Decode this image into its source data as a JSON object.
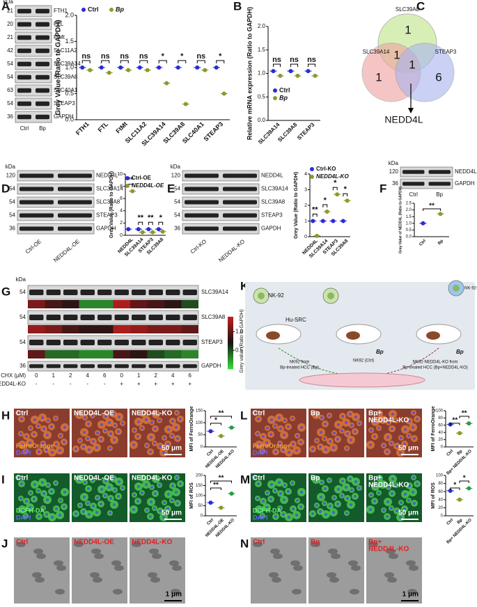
{
  "panels": {
    "A": {
      "letter": "A",
      "blot": {
        "unit": "kDa",
        "markers": [
          21,
          20,
          21,
          42,
          54,
          54,
          63,
          54,
          36
        ],
        "proteins": [
          "FTH1",
          "FTL",
          "FtMt",
          "SLC11A2",
          "SLC39A14",
          "SLC39A8",
          "SLC40A1",
          "STEAP3",
          "GAPDH"
        ],
        "lanes": [
          "Ctrl",
          "Bp"
        ]
      },
      "chart": {
        "type": "scatter",
        "ylabel": "Grey Value (Ratio to GAPDH)",
        "ylim": [
          0,
          2
        ],
        "yticks": [
          {
            "value": 0,
            "label": "0.0"
          },
          0.5,
          {
            "value": 1,
            "label": "1.0"
          },
          1.5,
          {
            "value": 2,
            "label": "2.0"
          }
        ],
        "categories": [
          "FTH1",
          "FTL",
          "FtMt",
          "SLC11A2",
          "SLC39A14",
          "SLC39A8",
          "SLC40A1",
          "STEAP3"
        ],
        "series": [
          {
            "name": "Ctrl",
            "color": "#2b2bd9",
            "values": [
              1.0,
              1.0,
              1.0,
              1.0,
              1.0,
              1.0,
              1.0,
              1.0
            ]
          },
          {
            "name": "Bp",
            "color": "#8c9a2c",
            "values": [
              0.95,
              0.9,
              0.95,
              0.95,
              0.7,
              0.3,
              0.95,
              0.5
            ]
          }
        ],
        "significance": [
          "ns",
          "ns",
          "ns",
          "ns",
          "*",
          "*",
          "ns",
          "*"
        ]
      }
    },
    "B": {
      "letter": "B",
      "chart": {
        "type": "scatter",
        "ylabel": "Relative mRNA expression (Ratio to GAPDH)",
        "ylim": [
          0,
          2
        ],
        "yticks": [
          {
            "value": 0,
            "label": "0.0"
          },
          0.5,
          {
            "value": 1,
            "label": "1.0"
          },
          1.5,
          {
            "value": 2,
            "label": "2.0"
          }
        ],
        "categories": [
          "SLC39A14",
          "SLC39A8",
          "STEAP3"
        ],
        "series": [
          {
            "name": "Ctrl",
            "color": "#2b2bd9",
            "values": [
              1.05,
              1.05,
              1.05
            ]
          },
          {
            "name": "Bp",
            "color": "#8c9a2c",
            "values": [
              0.95,
              0.95,
              0.95
            ]
          }
        ],
        "significance": [
          "ns",
          "ns",
          "ns"
        ]
      }
    },
    "C": {
      "letter": "C",
      "sets": [
        "SLC39A8",
        "SLC39A14",
        "STEAP3"
      ],
      "counts": [
        1,
        1,
        1,
        1,
        6
      ],
      "result": "NEDD4L"
    },
    "D": {
      "letter": "D",
      "blot": {
        "unit": "kDa",
        "markers": [
          120,
          54,
          54,
          54,
          36
        ],
        "proteins": [
          "NEDD4L",
          "SLC39A14",
          "SLC39A8",
          "STEAP3",
          "GAPDH"
        ],
        "lanes": [
          "Ctrl-OE",
          "NEDD4L-OE"
        ]
      },
      "chart": {
        "type": "scatter",
        "ylabel": "Grey Value (Ratio to GAPDH)",
        "ylim": [
          0,
          10
        ],
        "yticks": [
          0,
          2,
          4,
          6,
          8,
          10
        ],
        "categories": [
          "NEDD4L",
          "SLC39A14",
          "STEAP3",
          "SLC39A8"
        ],
        "series": [
          {
            "name": "Ctrl-OE",
            "color": "#2b2bd9",
            "values": [
              1,
              1,
              1,
              1
            ]
          },
          {
            "name": "NEDD4L-OE",
            "color": "#8c9a2c",
            "values": [
              7.2,
              0.5,
              0.5,
              0.6
            ]
          }
        ],
        "significance": [
          "**",
          "**",
          "**",
          "*"
        ]
      }
    },
    "E": {
      "letter": "E",
      "blot": {
        "unit": "kDa",
        "markers": [
          120,
          54,
          54,
          54,
          36
        ],
        "proteins": [
          "NEDD4L",
          "SLC39A14",
          "SLC39A8",
          "STEAP3",
          "GAPDH"
        ],
        "lanes": [
          "Ctrl-KO",
          "NEDD4L-KO"
        ]
      },
      "chart": {
        "type": "scatter",
        "ylabel": "Grey Value (Ratio to GAPDH)",
        "ylim": [
          0,
          4
        ],
        "yticks": [
          0,
          1,
          2,
          3,
          4
        ],
        "categories": [
          "NEDD4L",
          "SLC39A14",
          "STEAP3",
          "SLC39A8"
        ],
        "series": [
          {
            "name": "Ctrl-KO",
            "color": "#2b2bd9",
            "values": [
              1,
              1,
              1,
              1
            ]
          },
          {
            "name": "NEDD4L-KO",
            "color": "#8c9a2c",
            "values": [
              0.05,
              1.6,
              2.7,
              2.3
            ]
          }
        ],
        "significance": [
          "**",
          "*",
          "*",
          "*"
        ]
      }
    },
    "F": {
      "letter": "F",
      "blot": {
        "unit": "kDa",
        "markers": [
          120,
          36
        ],
        "proteins": [
          "NEDD4L",
          "GAPDH"
        ],
        "lanes": [
          "Ctrl",
          "Bp"
        ]
      },
      "chart": {
        "type": "scatter",
        "ylabel": "Gray Value of NEDD4L (Ratio to GAPDH)",
        "ylim": [
          0,
          2.5
        ],
        "yticks": [
          {
            "value": 0,
            "label": "0.0"
          },
          0.5,
          {
            "value": 1,
            "label": "1.0"
          },
          1.5,
          {
            "value": 2,
            "label": "2.0"
          },
          2.5
        ],
        "categories": [
          "Ctrl",
          "Bp"
        ],
        "values": [
          1.0,
          1.7
        ],
        "colors": [
          "#2b2bd9",
          "#8c9a2c"
        ],
        "comparisons": [
          {
            "groups": [
              "Ctrl",
              "Bp"
            ],
            "label": "**"
          }
        ]
      }
    },
    "G": {
      "letter": "G",
      "blot": {
        "unit": "kDa",
        "markers": [
          54,
          54,
          54,
          36
        ],
        "proteins": [
          "SLC39A14",
          "SLC39A8",
          "STEAP3",
          "GAPDH"
        ],
        "conditions": [
          {
            "name": "CHX (μM)",
            "values": [
              0,
              1,
              2,
              4,
              6,
              0,
              1,
              2,
              4,
              6
            ]
          },
          {
            "name": "NEDD4L-KO",
            "values": [
              "-",
              "-",
              "-",
              "-",
              "-",
              "+",
              "+",
              "+",
              "+",
              "+"
            ]
          }
        ]
      },
      "heatmap": {
        "rows": [
          [
            1.1,
            0.9,
            0.8,
            0.3,
            0.3,
            1.3,
            1.0,
            0.9,
            0.8,
            0.5
          ],
          [
            1.2,
            1.1,
            0.9,
            0.8,
            0.8,
            1.3,
            1.2,
            1.1,
            1.1,
            1.0
          ],
          [
            1.0,
            0.4,
            0.4,
            0.3,
            0.3,
            0.9,
            0.8,
            0.5,
            0.4,
            0.3
          ]
        ],
        "colorbar": {
          "label": "Grey value (Ratio to GAPDH)",
          "lim": [
            0,
            1.4
          ],
          "ticks": [
            {
              "value": 1,
              "label": "1.0"
            },
            0.5
          ]
        }
      }
    },
    "K": {
      "letter": "K",
      "labels": {
        "nk92": "NK-92",
        "nk92ko": "NK-92-NEDD4L-KO",
        "model": "Hu-SRC",
        "drug1": "Bp",
        "drug2": "Bp",
        "groupBp": [
          "NK92 from",
          "Bp-treated HCC (Bp)"
        ],
        "groupCtrl": "NK92 (Ctrl)",
        "groupKo": [
          "NK92-NEDD4L-KO from",
          "Bp-treated HCC (Bp+NEDD4L-KO)"
        ]
      }
    },
    "H": {
      "letter": "H",
      "images": {
        "columns": [
          [
            "Ctrl"
          ],
          [
            "NEDD4L-OE"
          ],
          [
            "NEDD4L-KO"
          ]
        ],
        "stains": [
          "FerroOrange",
          "DAPI"
        ],
        "scale": "50 μm"
      },
      "chart": {
        "type": "scatter",
        "ylabel": "MFI of FerroOrange",
        "ylim": [
          0,
          150
        ],
        "yticks": [
          0,
          50,
          100,
          150
        ],
        "categories": [
          "Ctrl",
          "NEDD4L-OE",
          "NEDD4L-KO"
        ],
        "values": [
          65,
          45,
          80
        ],
        "colors": [
          "#2b2bd9",
          "#8c9a2c",
          "#2f9a45"
        ],
        "comparisons": [
          {
            "groups": [
              "Ctrl",
              "NEDD4L-OE"
            ],
            "label": "*"
          },
          {
            "groups": [
              "Ctrl",
              "NEDD4L-KO"
            ],
            "label": "**"
          }
        ]
      }
    },
    "I": {
      "letter": "I",
      "images": {
        "columns": [
          [
            "Ctrl"
          ],
          [
            "NEDD4L-OE"
          ],
          [
            "NEDD4L-KO"
          ]
        ],
        "stains": [
          "DCFH-DA",
          "DAPI"
        ],
        "scale": "50 μm"
      },
      "chart": {
        "type": "scatter",
        "ylabel": "MFI of ROS",
        "ylim": [
          0,
          200
        ],
        "yticks": [
          0,
          50,
          100,
          150,
          200
        ],
        "categories": [
          "Ctrl",
          "NEDD4L-OE",
          "NEDD4L-KO"
        ],
        "values": [
          65,
          40,
          110
        ],
        "colors": [
          "#2b2bd9",
          "#8c9a2c",
          "#2f9a45"
        ],
        "comparisons": [
          {
            "groups": [
              "Ctrl",
              "NEDD4L-OE"
            ],
            "label": "**"
          },
          {
            "groups": [
              "Ctrl",
              "NEDD4L-KO"
            ],
            "label": "**"
          }
        ]
      }
    },
    "J": {
      "letter": "J",
      "images": {
        "columns": [
          [
            "Ctrl"
          ],
          [
            "NEDD4L-OE"
          ],
          [
            "NEDD4L-KO"
          ]
        ],
        "scale": "1 μm"
      }
    },
    "L": {
      "letter": "L",
      "images": {
        "columns": [
          [
            "Ctrl"
          ],
          [
            "Bp"
          ],
          [
            "Bp+",
            "NEDD4L-KO"
          ]
        ],
        "stains": [
          "FerroOrange",
          "DAPI"
        ],
        "scale": "50 μm"
      },
      "chart": {
        "type": "scatter",
        "ylabel": "MFI of FerroOrange",
        "ylim": [
          0,
          100
        ],
        "yticks": [
          0,
          20,
          40,
          60,
          80,
          100
        ],
        "categories": [
          "Ctrl",
          "Bp",
          "Bp+ NEDD4L-KO"
        ],
        "values": [
          62,
          38,
          65
        ],
        "colors": [
          "#2b2bd9",
          "#8c9a2c",
          "#2f9a45"
        ],
        "comparisons": [
          {
            "groups": [
              "Ctrl",
              "Bp"
            ],
            "label": "**"
          },
          {
            "groups": [
              "Bp",
              "Bp+ NEDD4L-KO"
            ],
            "label": "**"
          }
        ]
      }
    },
    "M": {
      "letter": "M",
      "images": {
        "columns": [
          [
            "Ctrl"
          ],
          [
            "Bp"
          ],
          [
            "Bp+",
            "NEDD4L-KO"
          ]
        ],
        "stains": [
          "DCFH-DA",
          "DAPI"
        ],
        "scale": "50 μm"
      },
      "chart": {
        "type": "scatter",
        "ylabel": "MFI of ROS",
        "ylim": [
          0,
          100
        ],
        "yticks": [
          0,
          20,
          40,
          60,
          80,
          100
        ],
        "categories": [
          "Ctrl",
          "Bp",
          "Bp+ NEDD4L-KO"
        ],
        "values": [
          62,
          40,
          68
        ],
        "colors": [
          "#2b2bd9",
          "#8c9a2c",
          "#2f9a45"
        ],
        "comparisons": [
          {
            "groups": [
              "Ctrl",
              "Bp"
            ],
            "label": "*"
          },
          {
            "groups": [
              "Bp",
              "Bp+ NEDD4L-KO"
            ],
            "label": "*"
          }
        ]
      }
    },
    "N": {
      "letter": "N",
      "images": {
        "columns": [
          [
            "Ctrl"
          ],
          [
            "Bp"
          ],
          [
            "Bp+",
            "NEDD4L-KO"
          ]
        ],
        "scale": "1 μm"
      }
    }
  }
}
